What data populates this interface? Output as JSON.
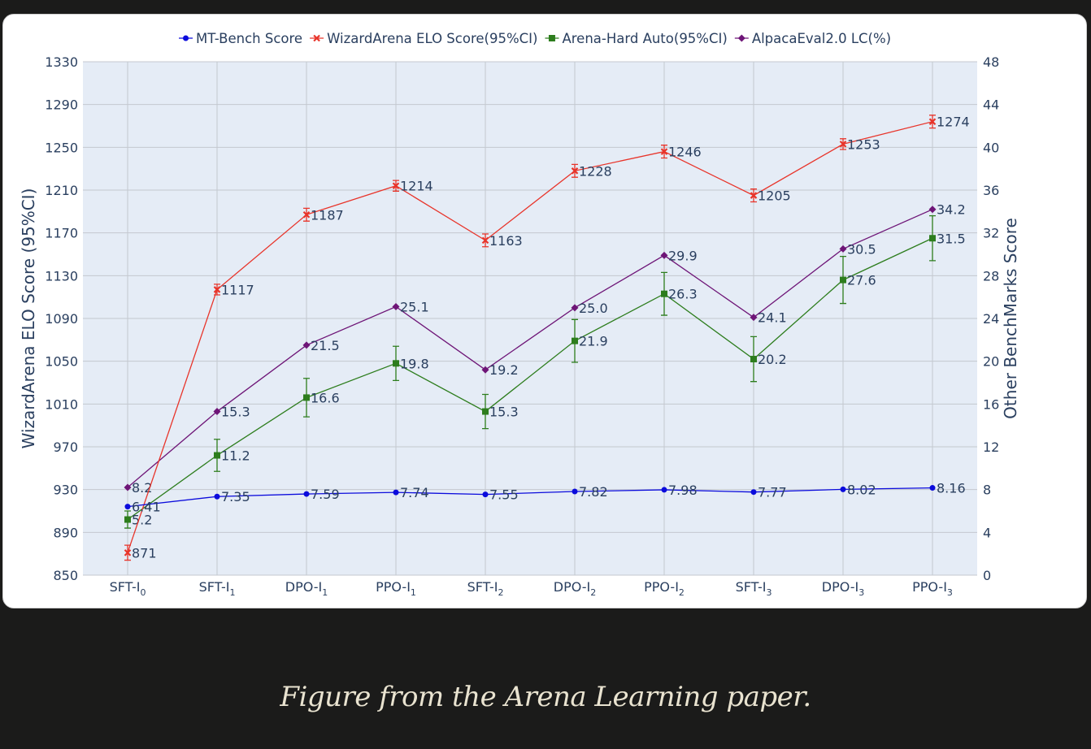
{
  "caption": "Figure from the Arena Learning paper.",
  "chart_data": {
    "type": "line",
    "title": "",
    "xlabel": "",
    "categories": [
      {
        "base": "SFT-I",
        "sub": "0"
      },
      {
        "base": "SFT-I",
        "sub": "1"
      },
      {
        "base": "DPO-I",
        "sub": "1"
      },
      {
        "base": "PPO-I",
        "sub": "1"
      },
      {
        "base": "SFT-I",
        "sub": "2"
      },
      {
        "base": "DPO-I",
        "sub": "2"
      },
      {
        "base": "PPO-I",
        "sub": "2"
      },
      {
        "base": "SFT-I",
        "sub": "3"
      },
      {
        "base": "DPO-I",
        "sub": "3"
      },
      {
        "base": "PPO-I",
        "sub": "3"
      }
    ],
    "y_left": {
      "label": "WizardArena ELO Score (95%CI)",
      "range": [
        850,
        1330
      ],
      "ticks": [
        850,
        890,
        930,
        970,
        1010,
        1050,
        1090,
        1130,
        1170,
        1210,
        1250,
        1290,
        1330
      ]
    },
    "y_right": {
      "label": "Other BenchMarks Score",
      "range": [
        0,
        48
      ],
      "ticks": [
        0,
        4,
        8,
        12,
        16,
        20,
        24,
        28,
        32,
        36,
        40,
        44,
        48
      ]
    },
    "grid": true,
    "legend_position": "top-center",
    "series": [
      {
        "name": "MT-Bench Score",
        "axis": "right",
        "color": "#0b0bdc",
        "marker": "circle",
        "values": [
          6.41,
          7.35,
          7.59,
          7.74,
          7.55,
          7.82,
          7.98,
          7.77,
          8.02,
          8.16
        ],
        "labels": [
          "6.41",
          "7.35",
          "7.59",
          "7.74",
          "7.55",
          "7.82",
          "7.98",
          "7.77",
          "8.02",
          "8.16"
        ]
      },
      {
        "name": "WizardArena ELO Score(95%CI)",
        "axis": "left",
        "color": "#e8342a",
        "marker": "x",
        "values": [
          871,
          1117,
          1187,
          1214,
          1163,
          1228,
          1246,
          1205,
          1253,
          1274
        ],
        "error": [
          7,
          5,
          6,
          5,
          6,
          6,
          6,
          6,
          5,
          6
        ],
        "labels": [
          "871",
          "1117",
          "1187",
          "1214",
          "1163",
          "1228",
          "1246",
          "1205",
          "1253",
          "1274"
        ]
      },
      {
        "name": "Arena-Hard Auto(95%CI)",
        "axis": "right",
        "color": "#2d7d1d",
        "marker": "square",
        "values": [
          5.2,
          11.2,
          16.6,
          19.8,
          15.3,
          21.9,
          26.3,
          20.2,
          27.6,
          31.5
        ],
        "error": [
          0.8,
          1.5,
          1.8,
          1.6,
          1.6,
          2.0,
          2.0,
          2.1,
          2.2,
          2.1
        ],
        "labels": [
          "5.2",
          "11.2",
          "16.6",
          "19.8",
          "15.3",
          "21.9",
          "26.3",
          "20.2",
          "27.6",
          "31.5"
        ]
      },
      {
        "name": "AlpacaEval2.0 LC(%)",
        "axis": "right",
        "color": "#6e1577",
        "marker": "diamond",
        "values": [
          8.2,
          15.3,
          21.5,
          25.1,
          19.2,
          25.0,
          29.9,
          24.1,
          30.5,
          34.2
        ],
        "labels": [
          "8.2",
          "15.3",
          "21.5",
          "25.1",
          "19.2",
          "25.0",
          "29.9",
          "24.1",
          "30.5",
          "34.2"
        ]
      }
    ]
  }
}
